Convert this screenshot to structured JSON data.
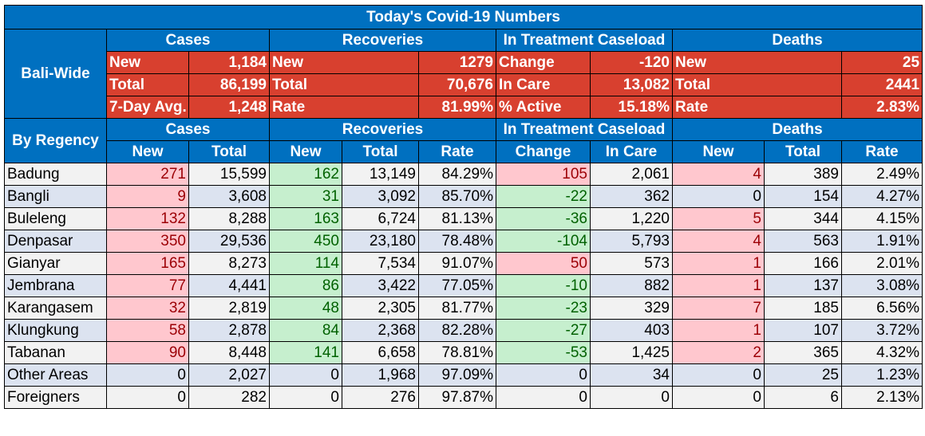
{
  "title": "Today's Covid-19 Numbers",
  "section_labels": {
    "bali_wide": "Bali-Wide",
    "by_regency": "By Regency"
  },
  "groups": {
    "cases": "Cases",
    "recoveries": "Recoveries",
    "treatment": "In Treatment Caseload",
    "deaths": "Deaths"
  },
  "summary": {
    "cases": [
      [
        "New",
        "1,184"
      ],
      [
        "Total",
        "86,199"
      ],
      [
        "7-Day Avg.",
        "1,248"
      ]
    ],
    "recoveries": [
      [
        "New",
        "1279"
      ],
      [
        "Total",
        "70,676"
      ],
      [
        "Rate",
        "81.99%"
      ]
    ],
    "treatment": [
      [
        "Change",
        "-120"
      ],
      [
        "In Care",
        "13,082"
      ],
      [
        "% Active",
        "15.18%"
      ]
    ],
    "deaths": [
      [
        "New",
        "25"
      ],
      [
        "Total",
        "2441"
      ],
      [
        "Rate",
        "2.83%"
      ]
    ]
  },
  "subheaders": {
    "cases_new": "New",
    "cases_total": "Total",
    "rec_new": "New",
    "rec_total": "Total",
    "rec_rate": "Rate",
    "treat_change": "Change",
    "treat_in_care": "In Care",
    "deaths_new": "New",
    "deaths_total": "Total",
    "deaths_rate": "Rate"
  },
  "regencies": [
    {
      "name": "Badung",
      "cases_new": "271",
      "cases_total": "15,599",
      "rec_new": "162",
      "rec_total": "13,149",
      "rec_rate": "84.29%",
      "change": "105",
      "in_care": "2,061",
      "deaths_new": "4",
      "deaths_total": "389",
      "deaths_rate": "2.49%"
    },
    {
      "name": "Bangli",
      "cases_new": "9",
      "cases_total": "3,608",
      "rec_new": "31",
      "rec_total": "3,092",
      "rec_rate": "85.70%",
      "change": "-22",
      "in_care": "362",
      "deaths_new": "0",
      "deaths_total": "154",
      "deaths_rate": "4.27%"
    },
    {
      "name": "Buleleng",
      "cases_new": "132",
      "cases_total": "8,288",
      "rec_new": "163",
      "rec_total": "6,724",
      "rec_rate": "81.13%",
      "change": "-36",
      "in_care": "1,220",
      "deaths_new": "5",
      "deaths_total": "344",
      "deaths_rate": "4.15%"
    },
    {
      "name": "Denpasar",
      "cases_new": "350",
      "cases_total": "29,536",
      "rec_new": "450",
      "rec_total": "23,180",
      "rec_rate": "78.48%",
      "change": "-104",
      "in_care": "5,793",
      "deaths_new": "4",
      "deaths_total": "563",
      "deaths_rate": "1.91%"
    },
    {
      "name": "Gianyar",
      "cases_new": "165",
      "cases_total": "8,273",
      "rec_new": "114",
      "rec_total": "7,534",
      "rec_rate": "91.07%",
      "change": "50",
      "in_care": "573",
      "deaths_new": "1",
      "deaths_total": "166",
      "deaths_rate": "2.01%"
    },
    {
      "name": "Jembrana",
      "cases_new": "77",
      "cases_total": "4,441",
      "rec_new": "86",
      "rec_total": "3,422",
      "rec_rate": "77.05%",
      "change": "-10",
      "in_care": "882",
      "deaths_new": "1",
      "deaths_total": "137",
      "deaths_rate": "3.08%"
    },
    {
      "name": "Karangasem",
      "cases_new": "32",
      "cases_total": "2,819",
      "rec_new": "48",
      "rec_total": "2,305",
      "rec_rate": "81.77%",
      "change": "-23",
      "in_care": "329",
      "deaths_new": "7",
      "deaths_total": "185",
      "deaths_rate": "6.56%"
    },
    {
      "name": "Klungkung",
      "cases_new": "58",
      "cases_total": "2,878",
      "rec_new": "84",
      "rec_total": "2,368",
      "rec_rate": "82.28%",
      "change": "-27",
      "in_care": "403",
      "deaths_new": "1",
      "deaths_total": "107",
      "deaths_rate": "3.72%"
    },
    {
      "name": "Tabanan",
      "cases_new": "90",
      "cases_total": "8,448",
      "rec_new": "141",
      "rec_total": "6,658",
      "rec_rate": "78.81%",
      "change": "-53",
      "in_care": "1,425",
      "deaths_new": "2",
      "deaths_total": "365",
      "deaths_rate": "4.32%"
    },
    {
      "name": "Other Areas",
      "cases_new": "0",
      "cases_total": "2,027",
      "rec_new": "0",
      "rec_total": "1,968",
      "rec_rate": "97.09%",
      "change": "0",
      "in_care": "34",
      "deaths_new": "0",
      "deaths_total": "25",
      "deaths_rate": "1.23%"
    },
    {
      "name": "Foreigners",
      "cases_new": "0",
      "cases_total": "282",
      "rec_new": "0",
      "rec_total": "276",
      "rec_rate": "97.87%",
      "change": "0",
      "in_care": "0",
      "deaths_new": "0",
      "deaths_total": "6",
      "deaths_rate": "2.13%"
    }
  ],
  "colors": {
    "header_blue": "#0070c0",
    "summary_red": "#d8402f",
    "increase_fill": "#ffc7ce",
    "increase_text": "#9c0006",
    "decrease_fill": "#c6efce",
    "decrease_text": "#006100"
  }
}
